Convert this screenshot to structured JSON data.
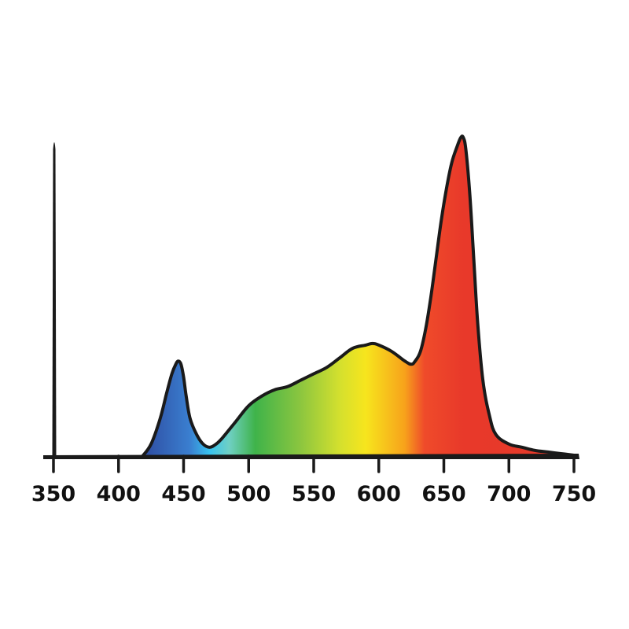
{
  "chart_data": {
    "type": "area",
    "title": "",
    "xlabel": "",
    "ylabel": "",
    "xlim": [
      350,
      750
    ],
    "ylim": [
      0,
      1
    ],
    "x_ticks": [
      350,
      400,
      450,
      500,
      550,
      600,
      650,
      700,
      750
    ],
    "x_tick_labels": [
      "350",
      "400",
      "450",
      "500",
      "550",
      "600",
      "650",
      "700",
      "750"
    ],
    "grid": false,
    "legend": "none",
    "fill": "visible spectrum gradient",
    "gradient_stops": [
      {
        "x": 420,
        "color": "#2f4ea3"
      },
      {
        "x": 455,
        "color": "#3a7fd0"
      },
      {
        "x": 470,
        "color": "#38c3ef"
      },
      {
        "x": 485,
        "color": "#6fd0c4"
      },
      {
        "x": 505,
        "color": "#3fb34a"
      },
      {
        "x": 540,
        "color": "#8cc63f"
      },
      {
        "x": 570,
        "color": "#d4e02e"
      },
      {
        "x": 590,
        "color": "#f7e51d"
      },
      {
        "x": 620,
        "color": "#f7a21b"
      },
      {
        "x": 635,
        "color": "#ef4b2a"
      },
      {
        "x": 665,
        "color": "#e8392a"
      },
      {
        "x": 750,
        "color": "#e53a2b"
      }
    ],
    "series": [
      {
        "x": [
          418,
          425,
          432,
          437,
          441,
          444,
          446,
          448,
          450,
          452,
          455,
          460,
          465,
          470,
          475,
          480,
          490,
          500,
          510,
          520,
          530,
          540,
          550,
          560,
          570,
          580,
          590,
          595,
          600,
          610,
          620,
          625,
          628,
          632,
          636,
          640,
          644,
          648,
          652,
          656,
          660,
          663,
          665,
          667,
          670,
          673,
          676,
          680,
          685,
          690,
          700,
          710,
          720,
          730,
          740,
          750
        ],
        "y": [
          0.0,
          0.04,
          0.12,
          0.2,
          0.26,
          0.29,
          0.3,
          0.29,
          0.25,
          0.19,
          0.12,
          0.07,
          0.04,
          0.03,
          0.04,
          0.06,
          0.11,
          0.16,
          0.19,
          0.21,
          0.22,
          0.24,
          0.26,
          0.28,
          0.31,
          0.34,
          0.35,
          0.355,
          0.35,
          0.33,
          0.3,
          0.29,
          0.3,
          0.33,
          0.4,
          0.5,
          0.62,
          0.74,
          0.84,
          0.92,
          0.97,
          1.0,
          1.0,
          0.96,
          0.82,
          0.62,
          0.42,
          0.24,
          0.13,
          0.07,
          0.04,
          0.03,
          0.02,
          0.015,
          0.01,
          0.005
        ]
      }
    ]
  }
}
